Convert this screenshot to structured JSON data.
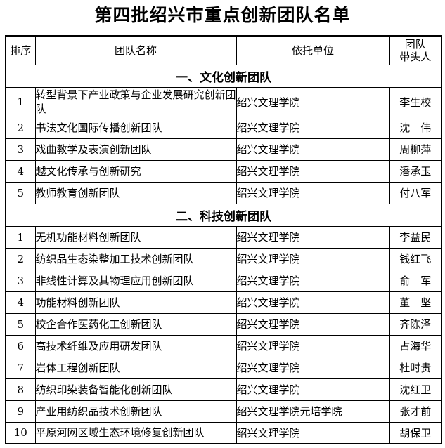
{
  "title": "第四批绍兴市重点创新团队名单",
  "colors": {
    "text": "#000000",
    "background": "#ffffff",
    "border": "#000000"
  },
  "table": {
    "headers": {
      "rank": "排序",
      "team": "团队名称",
      "unit": "依托单位",
      "leader_line1": "团队",
      "leader_line2": "带头人"
    },
    "sections": [
      {
        "name": "一、文化创新团队",
        "rows": [
          {
            "rank": "1",
            "team": "转型背景下产业政策与企业发展研究创新团队",
            "unit": "绍兴文理学院",
            "leader": "李生校"
          },
          {
            "rank": "2",
            "team": "书法文化国际传播创新团队",
            "unit": "绍兴文理学院",
            "leader": "沈　伟"
          },
          {
            "rank": "3",
            "team": "戏曲教学及表演创新团队",
            "unit": "绍兴文理学院",
            "leader": "周柳萍"
          },
          {
            "rank": "4",
            "team": "越文化传承与创新研究",
            "unit": "绍兴文理学院",
            "leader": "潘承玉"
          },
          {
            "rank": "5",
            "team": "教师教育创新团队",
            "unit": "绍兴文理学院",
            "leader": "付八军"
          }
        ]
      },
      {
        "name": "二、科技创新团队",
        "rows": [
          {
            "rank": "1",
            "team": "无机功能材料创新团队",
            "unit": "绍兴文理学院",
            "leader": "李益民"
          },
          {
            "rank": "2",
            "team": "纺织品生态染整加工技术创新团队",
            "unit": "绍兴文理学院",
            "leader": "钱红飞"
          },
          {
            "rank": "3",
            "team": "非线性计算及其物理应用创新团队",
            "unit": "绍兴文理学院",
            "leader": "俞　军"
          },
          {
            "rank": "4",
            "team": "功能材料创新团队",
            "unit": "绍兴文理学院",
            "leader": "董　坚"
          },
          {
            "rank": "5",
            "team": "校企合作医药化工创新团队",
            "unit": "绍兴文理学院",
            "leader": "齐陈泽"
          },
          {
            "rank": "6",
            "team": "高技术纤维及应用研发团队",
            "unit": "绍兴文理学院",
            "leader": "占海华"
          },
          {
            "rank": "7",
            "team": "岩体工程创新团队",
            "unit": "绍兴文理学院",
            "leader": "杜时贵"
          },
          {
            "rank": "8",
            "team": "纺织印染装备智能化创新团队",
            "unit": "绍兴文理学院",
            "leader": "沈红卫"
          },
          {
            "rank": "9",
            "team": "产业用纺织品技术创新团队",
            "unit": "绍兴文理学院元培学院",
            "leader": "张才前"
          },
          {
            "rank": "10",
            "team": "平原河网区域生态环境修复创新团队",
            "unit": "绍兴文理学院",
            "leader": "胡保卫"
          }
        ]
      }
    ]
  }
}
